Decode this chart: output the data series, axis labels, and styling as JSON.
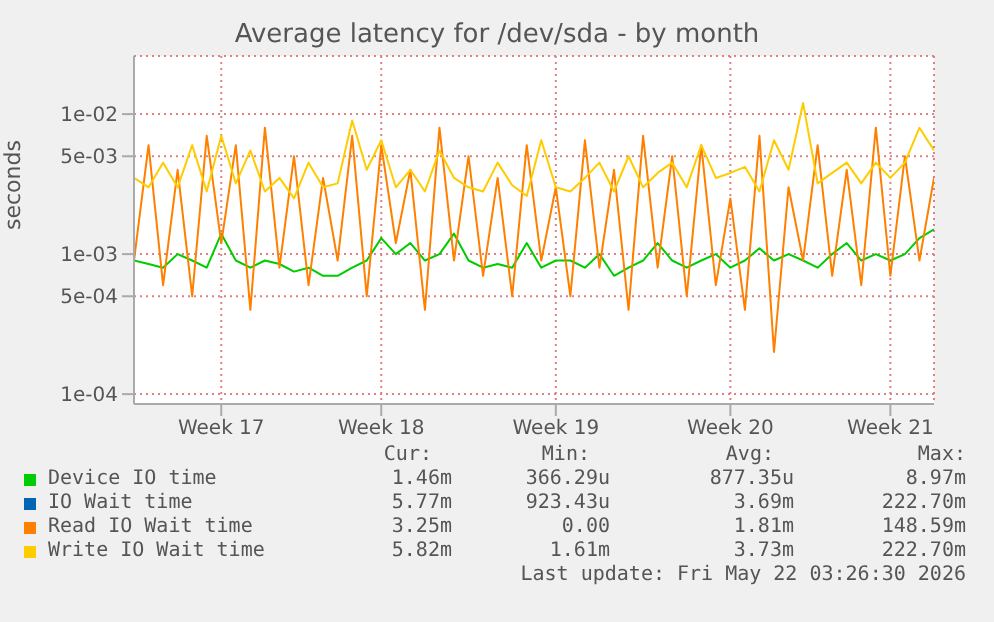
{
  "chart_data": {
    "type": "line",
    "title": "Average latency for /dev/sda - by month",
    "ylabel": "seconds",
    "categories": [
      null,
      null,
      null,
      null,
      null,
      null,
      "Week 17",
      null,
      null,
      null,
      null,
      null,
      null,
      null,
      null,
      null,
      null,
      "Week 18",
      null,
      null,
      null,
      null,
      null,
      null,
      null,
      null,
      null,
      null,
      null,
      "Week 19",
      null,
      null,
      null,
      null,
      null,
      null,
      null,
      null,
      null,
      null,
      null,
      "Week 20",
      null,
      null,
      null,
      null,
      null,
      null,
      null,
      null,
      null,
      null,
      "Week 21",
      null,
      null,
      null
    ],
    "series": [
      {
        "name": "Device IO time",
        "color": "#00cc00",
        "values": [
          0.0009,
          0.00085,
          0.0008,
          0.001,
          0.0009,
          0.0008,
          0.0014,
          0.0009,
          0.0008,
          0.0009,
          0.00085,
          0.00075,
          0.0008,
          0.0007,
          0.0007,
          0.0008,
          0.0009,
          0.0013,
          0.001,
          0.0012,
          0.0009,
          0.001,
          0.0014,
          0.0009,
          0.0008,
          0.00085,
          0.0008,
          0.0012,
          0.0008,
          0.0009,
          0.0009,
          0.0008,
          0.001,
          0.0007,
          0.0008,
          0.0009,
          0.0012,
          0.0009,
          0.0008,
          0.0009,
          0.001,
          0.0008,
          0.0009,
          0.0011,
          0.0009,
          0.001,
          0.0009,
          0.0008,
          0.001,
          0.0012,
          0.0009,
          0.001,
          0.0009,
          0.001,
          0.0013,
          0.0015
        ]
      },
      {
        "name": "IO Wait time",
        "color": "#0066b3",
        "values": [
          null,
          null,
          null,
          null,
          null,
          null,
          null,
          null,
          null,
          null,
          null,
          null,
          null,
          null,
          null,
          null,
          null,
          null,
          null,
          null,
          null,
          null,
          null,
          null,
          null,
          null,
          null,
          null,
          null,
          null,
          null,
          null,
          null,
          null,
          null,
          null,
          null,
          null,
          null,
          null,
          null,
          null,
          null,
          null,
          null,
          null,
          null,
          null,
          null,
          null,
          null,
          null,
          null,
          null,
          null,
          null
        ]
      },
      {
        "name": "Read IO Wait time",
        "color": "#ff8000",
        "values": [
          0.0009,
          0.006,
          0.0006,
          0.004,
          0.0005,
          0.007,
          0.0012,
          0.006,
          0.0004,
          0.008,
          0.0008,
          0.005,
          0.0006,
          0.0035,
          0.0009,
          0.007,
          0.0005,
          0.006,
          0.0012,
          0.004,
          0.0004,
          0.008,
          0.0009,
          0.005,
          0.0007,
          0.0035,
          0.0005,
          0.006,
          0.0009,
          0.003,
          0.0005,
          0.0065,
          0.0008,
          0.004,
          0.0004,
          0.007,
          0.0008,
          0.005,
          0.0005,
          0.006,
          0.0006,
          0.0025,
          0.0004,
          0.007,
          0.0002,
          0.003,
          0.0009,
          0.006,
          0.0007,
          0.004,
          0.0006,
          0.008,
          0.0007,
          0.005,
          0.0009,
          0.0035
        ]
      },
      {
        "name": "Write IO Wait time",
        "color": "#ffcc00",
        "values": [
          0.0035,
          0.003,
          0.0045,
          0.003,
          0.006,
          0.0028,
          0.007,
          0.0032,
          0.0055,
          0.0028,
          0.0035,
          0.0025,
          0.0045,
          0.003,
          0.0032,
          0.009,
          0.004,
          0.0065,
          0.003,
          0.004,
          0.0028,
          0.0055,
          0.0035,
          0.003,
          0.0028,
          0.0045,
          0.0031,
          0.0026,
          0.0065,
          0.003,
          0.0028,
          0.0035,
          0.0045,
          0.0028,
          0.005,
          0.003,
          0.0038,
          0.0045,
          0.003,
          0.006,
          0.0035,
          0.0038,
          0.0042,
          0.0028,
          0.0065,
          0.004,
          0.012,
          0.0032,
          0.0038,
          0.0045,
          0.0032,
          0.0045,
          0.0035,
          0.0045,
          0.008,
          0.0055
        ]
      }
    ],
    "ylim": [
      8.5e-05,
      0.026
    ],
    "yticks": [
      {
        "value": 0.0001,
        "label": "1e-04"
      },
      {
        "value": 0.0005,
        "label": "5e-04"
      },
      {
        "value": 0.001,
        "label": "1e-03"
      },
      {
        "value": 0.005,
        "label": "5e-03"
      },
      {
        "value": 0.01,
        "label": "1e-02"
      }
    ],
    "log": true,
    "grid": true,
    "legend": "bottom",
    "annotations": [
      "Cur:",
      "Min:",
      "Avg:",
      "Max:",
      "1.46m",
      "366.29u",
      "877.35u",
      "8.97m",
      "5.77m",
      "923.43u",
      "3.69m",
      "222.70m",
      "3.25m",
      "0.00",
      "1.81m",
      "148.59m",
      "5.82m",
      "1.61m",
      "3.73m",
      "222.70m",
      "Last update: Fri May 22 03:26:30 2026"
    ]
  }
}
